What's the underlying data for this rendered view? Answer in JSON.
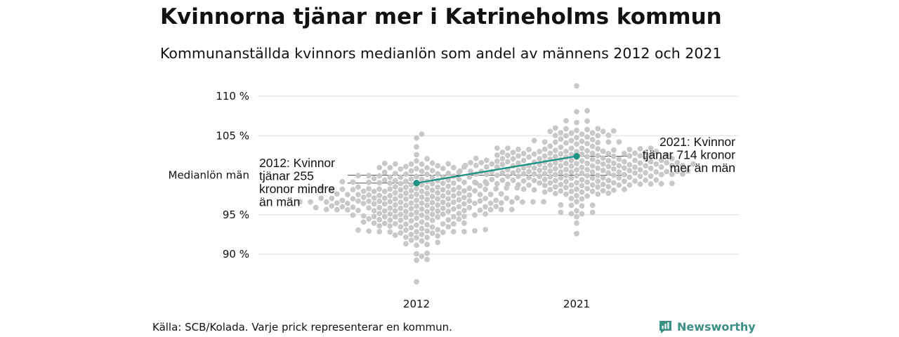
{
  "title": "Kvinnorna tjänar mer i Katrineholms kommun",
  "subtitle": "Kommunanställda kvinnors medianlön som andel av männens 2012 och 2021",
  "source": "Källa: SCB/Kolada. Varje prick representerar en kommun.",
  "brand": {
    "name": "Newsworthy",
    "color": "#3b8f86",
    "icon": "newsworthy-logo-icon"
  },
  "chart_data": {
    "type": "scatter",
    "subtype": "beeswarm",
    "categories": [
      "2012",
      "2021"
    ],
    "ylim": [
      86,
      112
    ],
    "y_ticks": [
      90,
      95,
      100,
      105,
      110
    ],
    "y_tick_labels": [
      "90 %",
      "95 %",
      "Medianlön män",
      "105 %",
      "110 %"
    ],
    "reference_line": {
      "y": 100,
      "label": "Medianlön män"
    },
    "grid": true,
    "colors": {
      "dots": "#c8c8c8",
      "highlight": "#1f9383",
      "grid": "#e3e3e3",
      "reference": "#555555"
    },
    "highlight": {
      "name": "Katrineholm",
      "values": [
        {
          "x": "2012",
          "y": 99.0
        },
        {
          "x": "2021",
          "y": 102.4
        }
      ]
    },
    "distributions": [
      {
        "x": "2012",
        "mean": 96.6,
        "sd": 2.6,
        "min": 86.5,
        "max": 105.2,
        "n": 290
      },
      {
        "x": "2021",
        "mean": 101.0,
        "sd": 2.5,
        "min": 92.6,
        "max": 111.3,
        "n": 290
      }
    ],
    "annotations": [
      {
        "x": "2012",
        "lines": [
          "2012: Kvinnor",
          "tjänar 255",
          "kronor mindre",
          "än män"
        ]
      },
      {
        "x": "2021",
        "lines": [
          "2021: Kvinnor",
          "tjänar 714 kronor",
          "mer än män"
        ]
      }
    ]
  }
}
